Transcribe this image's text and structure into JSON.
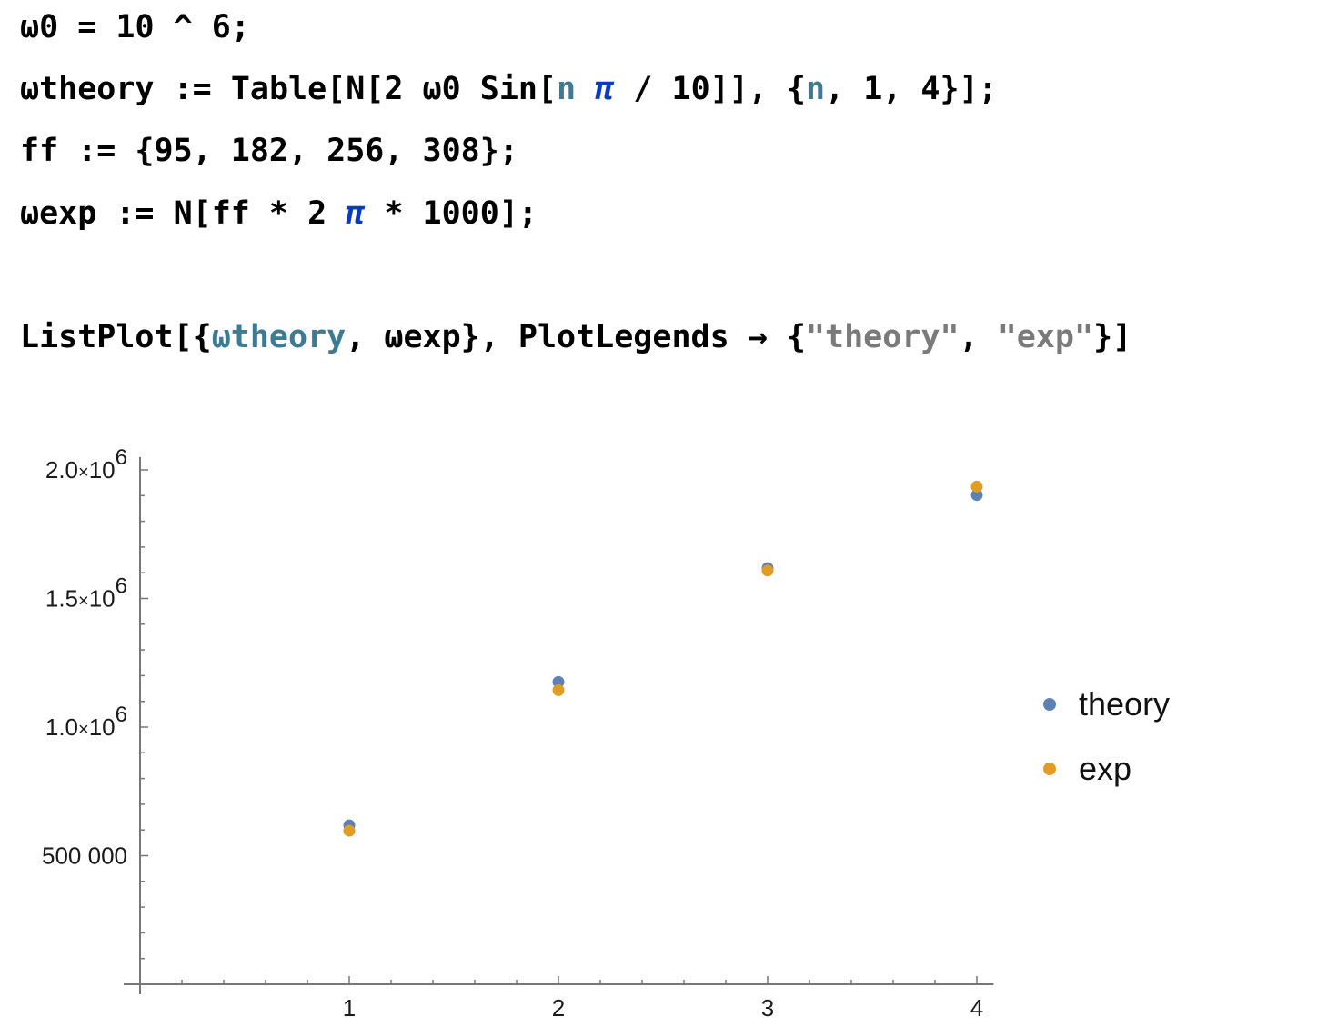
{
  "notebook": {
    "line1": {
      "lhs": "ω0",
      "op": " = ",
      "rhs": "10 ^ 6;"
    },
    "line2": {
      "lhs": "ωtheory",
      "op": " := ",
      "p1": "Table[N[2 ω0 Sin[",
      "var_n": "n",
      "space": " ",
      "pi": "π",
      "p2": " / 10]], {",
      "var_n2": "n",
      "p3": ", 1, 4}];"
    },
    "line3": {
      "text": "ff := {95, 182, 256, 308};"
    },
    "line4": {
      "p1": "ωexp := N[ff * 2 ",
      "pi": "π",
      "p2": " * 1000];"
    },
    "line5": {
      "p1": "ListPlot[{",
      "var": "ωtheory",
      "p2": ", ωexp}, PlotLegends → {",
      "s1": "\"theory\"",
      "p3": ", ",
      "s2": "\"exp\"",
      "p4": "}]"
    }
  },
  "chart_data": {
    "type": "scatter",
    "x": [
      1,
      2,
      3,
      4
    ],
    "series": [
      {
        "name": "theory",
        "color": "#5e81b5",
        "values": [
          618034,
          1175571,
          1618034,
          1902113
        ]
      },
      {
        "name": "exp",
        "color": "#e19c24",
        "values": [
          596903,
          1143540,
          1608495,
          1935221
        ]
      }
    ],
    "xlim": [
      0,
      4.08
    ],
    "ylim": [
      0,
      2050000
    ],
    "xticks": [
      {
        "value": 1,
        "label": "1"
      },
      {
        "value": 2,
        "label": "2"
      },
      {
        "value": 3,
        "label": "3"
      },
      {
        "value": 4,
        "label": "4"
      }
    ],
    "yticks": [
      {
        "value": 500000,
        "label": "500 000"
      },
      {
        "value": 1000000,
        "mantissa": "1.0",
        "times": "×",
        "base": "10",
        "exponent": "6"
      },
      {
        "value": 1500000,
        "mantissa": "1.5",
        "times": "×",
        "base": "10",
        "exponent": "6"
      },
      {
        "value": 2000000,
        "mantissa": "2.0",
        "times": "×",
        "base": "10",
        "exponent": "6"
      }
    ],
    "legend_position": "right",
    "grid": false
  }
}
